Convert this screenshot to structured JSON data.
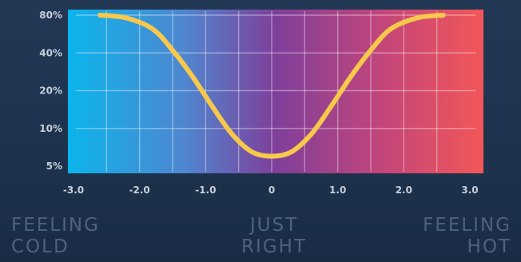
{
  "chart_data": {
    "type": "line",
    "title": "",
    "xlabel": "",
    "ylabel": "",
    "y_scale": "log",
    "x_ticks": [
      "-3.0",
      "-2.0",
      "-1.0",
      "0",
      "1.0",
      "2.0",
      "3.0"
    ],
    "x_tick_values": [
      -3,
      -2,
      -1,
      0,
      1,
      2,
      3
    ],
    "y_ticks": [
      "5%",
      "10%",
      "20%",
      "40%",
      "80%"
    ],
    "y_tick_values": [
      5,
      10,
      20,
      40,
      80
    ],
    "xlim": [
      -3.0,
      3.0
    ],
    "ylim": [
      4.5,
      90
    ],
    "grid": true,
    "background_gradient": [
      "#0bb5ec",
      "#4f86cf",
      "#7f3f9b",
      "#c4467a",
      "#f25757"
    ],
    "series": [
      {
        "color": "#f7c84b",
        "x": [
          -2.6,
          -2.2,
          -1.8,
          -1.5,
          -1.2,
          -0.9,
          -0.6,
          -0.3,
          0.0,
          0.3,
          0.6,
          0.9,
          1.2,
          1.5,
          1.8,
          2.2,
          2.6
        ],
        "y": [
          80,
          76,
          62,
          42,
          26,
          15,
          9,
          6.5,
          6,
          6.5,
          9,
          15,
          26,
          42,
          62,
          76,
          80
        ]
      }
    ]
  },
  "zones": {
    "cold": [
      "FEELING",
      "COLD"
    ],
    "right": [
      "JUST",
      "RIGHT"
    ],
    "hot": [
      "FEELING",
      "HOT"
    ]
  }
}
